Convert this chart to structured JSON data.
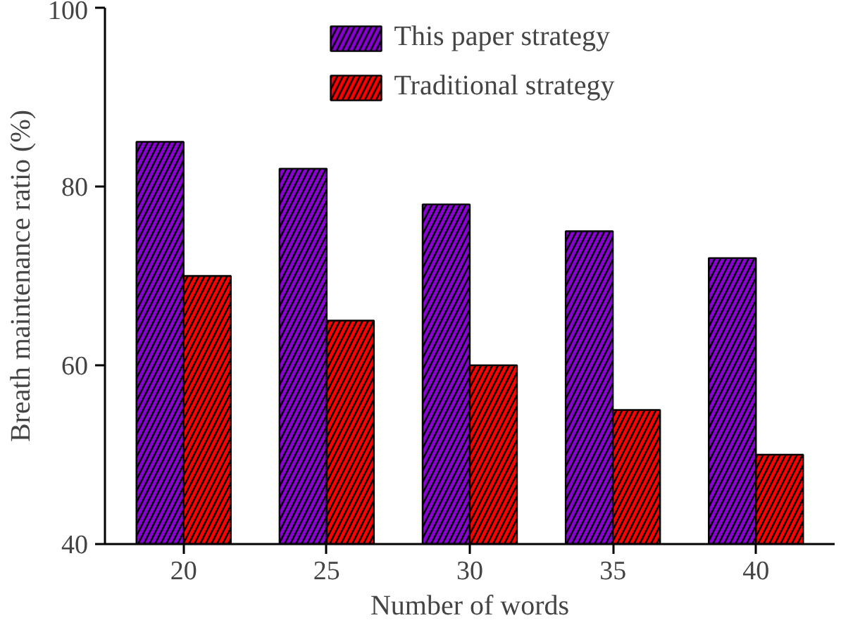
{
  "chart_data": {
    "type": "bar",
    "xlabel": "Number of words",
    "ylabel": "Breath maintenance ratio (%)",
    "categories": [
      "20",
      "25",
      "30",
      "35",
      "40"
    ],
    "series": [
      {
        "name": "This paper strategy",
        "color": "#8a00d4",
        "values": [
          85,
          82,
          78,
          75,
          72
        ]
      },
      {
        "name": "Traditional strategy",
        "color": "#ff0000",
        "values": [
          70,
          65,
          60,
          55,
          50
        ]
      }
    ],
    "ylim": [
      40,
      100
    ],
    "yticks": [
      40,
      60,
      80,
      100
    ],
    "grid": false,
    "legend": "top"
  }
}
